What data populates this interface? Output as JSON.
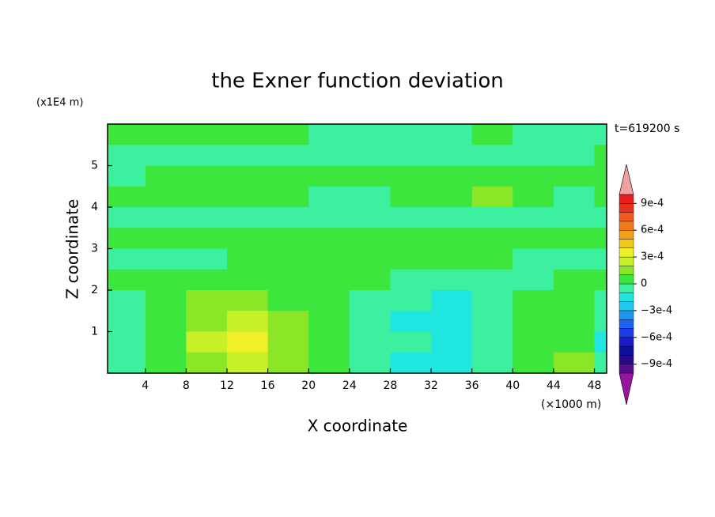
{
  "chart_data": {
    "type": "contour",
    "title": "the Exner function deviation",
    "xlabel": "X coordinate",
    "ylabel": "Z coordinate",
    "x_unit": "(×1000 m)",
    "y_unit": "(x1E4 m)",
    "annotation": "t=619200 s",
    "xlim": [
      0.3,
      49.2
    ],
    "ylim": [
      0,
      6
    ],
    "xticks": [
      4,
      8,
      12,
      16,
      20,
      24,
      28,
      32,
      36,
      40,
      44,
      48
    ],
    "yticks": [
      1,
      2,
      3,
      4,
      5
    ],
    "x": [
      2,
      6,
      10,
      14,
      18,
      22,
      26,
      30,
      34,
      38,
      42,
      46,
      50
    ],
    "y": [
      5.75,
      5.25,
      4.75,
      4.25,
      3.75,
      3.25,
      2.75,
      2.25,
      1.75,
      1.25,
      0.75,
      0.25
    ],
    "z": [
      [
        5e-05,
        5e-05,
        5e-05,
        5e-05,
        5e-05,
        -5e-05,
        -5e-05,
        -5e-05,
        -5e-05,
        5e-05,
        -5e-05,
        -5e-05,
        -5e-05
      ],
      [
        -5e-05,
        -5e-05,
        -5e-05,
        -5e-05,
        -5e-05,
        -5e-05,
        -5e-05,
        -5e-05,
        -5e-05,
        -5e-05,
        -5e-05,
        -5e-05,
        5e-05
      ],
      [
        -5e-05,
        5e-05,
        5e-05,
        5e-05,
        5e-05,
        5e-05,
        5e-05,
        5e-05,
        5e-05,
        5e-05,
        5e-05,
        5e-05,
        5e-05
      ],
      [
        5e-05,
        5e-05,
        5e-05,
        5e-05,
        5e-05,
        -5e-05,
        -5e-05,
        5e-05,
        5e-05,
        0.00015,
        5e-05,
        -5e-05,
        5e-05
      ],
      [
        -5e-05,
        -5e-05,
        -5e-05,
        -5e-05,
        -5e-05,
        -5e-05,
        -5e-05,
        -5e-05,
        -5e-05,
        -5e-05,
        -5e-05,
        -5e-05,
        -5e-05
      ],
      [
        5e-05,
        5e-05,
        5e-05,
        5e-05,
        5e-05,
        5e-05,
        5e-05,
        5e-05,
        5e-05,
        5e-05,
        5e-05,
        5e-05,
        5e-05
      ],
      [
        -5e-05,
        -5e-05,
        -5e-05,
        5e-05,
        5e-05,
        5e-05,
        5e-05,
        5e-05,
        5e-05,
        5e-05,
        -5e-05,
        -5e-05,
        -5e-05
      ],
      [
        5e-05,
        5e-05,
        5e-05,
        5e-05,
        5e-05,
        5e-05,
        5e-05,
        -5e-05,
        -5e-05,
        -5e-05,
        -5e-05,
        5e-05,
        5e-05
      ],
      [
        -5e-05,
        5e-05,
        0.00015,
        0.00015,
        5e-05,
        5e-05,
        -5e-05,
        -5e-05,
        -0.00015,
        -5e-05,
        5e-05,
        5e-05,
        -5e-05
      ],
      [
        -5e-05,
        5e-05,
        0.00015,
        0.00025,
        0.00015,
        5e-05,
        -5e-05,
        -0.00015,
        -0.00015,
        -5e-05,
        5e-05,
        5e-05,
        -5e-05
      ],
      [
        -5e-05,
        5e-05,
        0.00025,
        0.00035,
        0.00015,
        5e-05,
        -5e-05,
        -5e-05,
        -0.00015,
        -5e-05,
        5e-05,
        5e-05,
        -0.00015
      ],
      [
        -5e-05,
        5e-05,
        0.00015,
        0.00025,
        0.00015,
        5e-05,
        -5e-05,
        -0.00015,
        -0.00015,
        -5e-05,
        5e-05,
        0.00015,
        -5e-05
      ]
    ],
    "colorbar": {
      "clim": [
        -0.001,
        0.001
      ],
      "colors": [
        "#5a0a8c",
        "#2a0a8c",
        "#1010a0",
        "#1a1ac8",
        "#1e3ce6",
        "#1e64f0",
        "#1e96f0",
        "#1ec8f0",
        "#20e6e0",
        "#3cf0a0",
        "#3ce63c",
        "#8ce628",
        "#c8f028",
        "#f0f028",
        "#f0c81e",
        "#f0a01e",
        "#f0781e",
        "#f05a1e",
        "#e6321e",
        "#e61e1e"
      ],
      "over_color": "#f0a0a0",
      "under_color": "#9614a0",
      "ticks": [
        {
          "value": -0.0009,
          "label": "−9e-4"
        },
        {
          "value": -0.0006,
          "label": "−6e-4"
        },
        {
          "value": -0.0003,
          "label": "−3e-4"
        },
        0,
        {
          "value": 0.0003,
          "label": "3e-4"
        },
        {
          "value": 0.0006,
          "label": "6e-4"
        },
        {
          "value": 0.0009,
          "label": "9e-4"
        }
      ]
    }
  }
}
